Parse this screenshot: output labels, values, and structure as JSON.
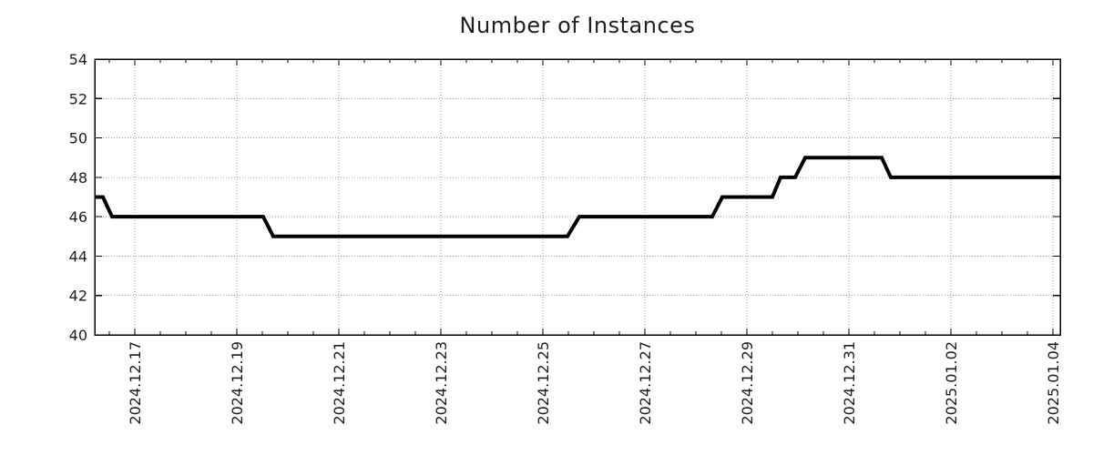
{
  "chart_data": {
    "type": "line",
    "title": "Number of Instances",
    "x_axis": {
      "unit": "days since 2024-12-16 00:00",
      "range": [
        0.214,
        19.143
      ],
      "major_ticks": [
        {
          "pos": 1,
          "label": "2024.12.17"
        },
        {
          "pos": 3,
          "label": "2024.12.19"
        },
        {
          "pos": 5,
          "label": "2024.12.21"
        },
        {
          "pos": 7,
          "label": "2024.12.23"
        },
        {
          "pos": 9,
          "label": "2024.12.25"
        },
        {
          "pos": 11,
          "label": "2024.12.27"
        },
        {
          "pos": 13,
          "label": "2024.12.29"
        },
        {
          "pos": 15,
          "label": "2024.12.31"
        },
        {
          "pos": 17,
          "label": "2025.01.02"
        },
        {
          "pos": 19,
          "label": "2025.01.04"
        }
      ],
      "minor_tick_interval": 0.5
    },
    "y_axis": {
      "range": [
        40,
        54
      ],
      "ticks": [
        40,
        42,
        44,
        46,
        48,
        50,
        52,
        54
      ]
    },
    "grid": {
      "style": "dotted",
      "color": "#9e9e9e",
      "shown": true
    },
    "legend": {
      "shown": false
    },
    "series": [
      {
        "name": "Number of Instances",
        "color": "#000000",
        "line_width": 4,
        "points": [
          [
            0.214,
            47
          ],
          [
            0.375,
            47
          ],
          [
            0.554,
            46
          ],
          [
            3.518,
            46
          ],
          [
            3.714,
            45
          ],
          [
            9.482,
            45
          ],
          [
            9.714,
            46
          ],
          [
            12.321,
            46
          ],
          [
            12.518,
            47
          ],
          [
            13.5,
            47
          ],
          [
            13.661,
            48
          ],
          [
            13.946,
            48
          ],
          [
            14.143,
            49
          ],
          [
            15.643,
            49
          ],
          [
            15.821,
            48
          ],
          [
            19.143,
            48
          ]
        ]
      }
    ],
    "colors": {
      "background": "#ffffff",
      "border": "#000000",
      "text": "#1f1f1f"
    }
  }
}
